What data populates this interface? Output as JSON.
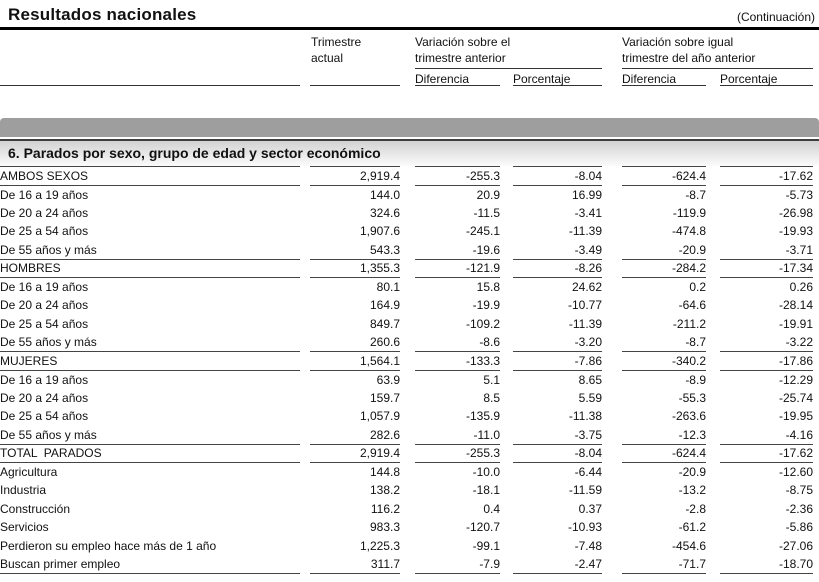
{
  "page": {
    "title": "Resultados nacionales",
    "continuation": "(Continuación)"
  },
  "colors": {
    "band_gray": "#9e9e9e",
    "text": "#111111"
  },
  "header": {
    "trimestre_actual": "Trimestre\nactual",
    "variacion_trimestre_anterior": "Variación sobre el\ntrimestre anterior",
    "variacion_ano_anterior": "Variación sobre igual\ntrimestre del año anterior",
    "diferencia": "Diferencia",
    "porcentaje": "Porcentaje"
  },
  "section": {
    "title": "6. Parados por sexo, grupo de edad y sector económico"
  },
  "table": {
    "columns": [
      "Trimestre actual",
      "Diferencia",
      "Porcentaje",
      "Diferencia",
      "Porcentaje"
    ],
    "rows": [
      {
        "label": "AMBOS SEXOS",
        "group": true,
        "values": [
          "2,919.4",
          "-255.3",
          "-8.04",
          "-624.4",
          "-17.62"
        ]
      },
      {
        "label": "De 16 a 19 años",
        "group": false,
        "values": [
          "144.0",
          "20.9",
          "16.99",
          "-8.7",
          "-5.73"
        ]
      },
      {
        "label": "De 20 a 24 años",
        "group": false,
        "values": [
          "324.6",
          "-11.5",
          "-3.41",
          "-119.9",
          "-26.98"
        ]
      },
      {
        "label": "De 25 a 54 años",
        "group": false,
        "values": [
          "1,907.6",
          "-245.1",
          "-11.39",
          "-474.8",
          "-19.93"
        ]
      },
      {
        "label": "De 55 años y más",
        "group": false,
        "values": [
          "543.3",
          "-19.6",
          "-3.49",
          "-20.9",
          "-3.71"
        ]
      },
      {
        "label": "HOMBRES",
        "group": true,
        "values": [
          "1,355.3",
          "-121.9",
          "-8.26",
          "-284.2",
          "-17.34"
        ]
      },
      {
        "label": "De 16 a 19 años",
        "group": false,
        "values": [
          "80.1",
          "15.8",
          "24.62",
          "0.2",
          "0.26"
        ]
      },
      {
        "label": "De 20 a 24 años",
        "group": false,
        "values": [
          "164.9",
          "-19.9",
          "-10.77",
          "-64.6",
          "-28.14"
        ]
      },
      {
        "label": "De 25 a 54 años",
        "group": false,
        "values": [
          "849.7",
          "-109.2",
          "-11.39",
          "-211.2",
          "-19.91"
        ]
      },
      {
        "label": "De 55 años y más",
        "group": false,
        "values": [
          "260.6",
          "-8.6",
          "-3.20",
          "-8.7",
          "-3.22"
        ]
      },
      {
        "label": "MUJERES",
        "group": true,
        "values": [
          "1,564.1",
          "-133.3",
          "-7.86",
          "-340.2",
          "-17.86"
        ]
      },
      {
        "label": "De 16 a 19 años",
        "group": false,
        "values": [
          "63.9",
          "5.1",
          "8.65",
          "-8.9",
          "-12.29"
        ]
      },
      {
        "label": "De 20 a 24 años",
        "group": false,
        "values": [
          "159.7",
          "8.5",
          "5.59",
          "-55.3",
          "-25.74"
        ]
      },
      {
        "label": "De 25 a 54 años",
        "group": false,
        "values": [
          "1,057.9",
          "-135.9",
          "-11.38",
          "-263.6",
          "-19.95"
        ]
      },
      {
        "label": "De 55 años y más",
        "group": false,
        "values": [
          "282.6",
          "-11.0",
          "-3.75",
          "-12.3",
          "-4.16"
        ]
      },
      {
        "label": "TOTAL  PARADOS",
        "group": true,
        "values": [
          "2,919.4",
          "-255.3",
          "-8.04",
          "-624.4",
          "-17.62"
        ]
      },
      {
        "label": "Agricultura",
        "group": false,
        "values": [
          "144.8",
          "-10.0",
          "-6.44",
          "-20.9",
          "-12.60"
        ]
      },
      {
        "label": "Industria",
        "group": false,
        "values": [
          "138.2",
          "-18.1",
          "-11.59",
          "-13.2",
          "-8.75"
        ]
      },
      {
        "label": "Construcción",
        "group": false,
        "values": [
          "116.2",
          "0.4",
          "0.37",
          "-2.8",
          "-2.36"
        ]
      },
      {
        "label": "Servicios",
        "group": false,
        "values": [
          "983.3",
          "-120.7",
          "-10.93",
          "-61.2",
          "-5.86"
        ]
      },
      {
        "label": "Perdieron su empleo hace más de 1 año",
        "group": false,
        "values": [
          "1,225.3",
          "-99.1",
          "-7.48",
          "-454.6",
          "-27.06"
        ]
      },
      {
        "label": "Buscan primer empleo",
        "group": false,
        "values": [
          "311.7",
          "-7.9",
          "-2.47",
          "-71.7",
          "-18.70"
        ]
      }
    ]
  }
}
